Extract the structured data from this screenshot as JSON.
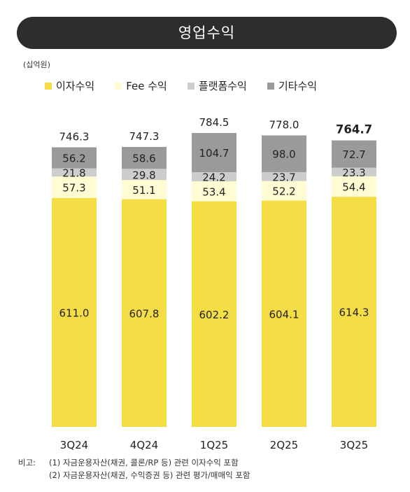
{
  "title": "영업수익",
  "unit": "(십억원)",
  "legend": [
    {
      "label": "이자수익",
      "color": "#f5dd46"
    },
    {
      "label": "Fee 수익",
      "color": "#fffbd2"
    },
    {
      "label": "플랫폼수익",
      "color": "#cdcdcd"
    },
    {
      "label": "기타수익",
      "color": "#9a9a9a"
    }
  ],
  "chart_data": {
    "type": "bar",
    "stacked": true,
    "categories": [
      "3Q24",
      "4Q24",
      "1Q25",
      "2Q25",
      "3Q25"
    ],
    "series": [
      {
        "name": "이자수익",
        "values": [
          611.0,
          607.8,
          602.2,
          604.1,
          614.3
        ],
        "labels": [
          "611.0",
          "607.8",
          "602.2",
          "604.1",
          "614.3"
        ]
      },
      {
        "name": "Fee 수익",
        "values": [
          57.3,
          51.1,
          53.4,
          52.2,
          54.4
        ],
        "labels": [
          "57.3",
          "51.1",
          "53.4",
          "52.2",
          "54.4"
        ]
      },
      {
        "name": "플랫폼수익",
        "values": [
          21.8,
          29.8,
          24.2,
          23.7,
          23.3
        ],
        "labels": [
          "21.8",
          "29.8",
          "24.2",
          "23.7",
          "23.3"
        ]
      },
      {
        "name": "기타수익",
        "values": [
          56.2,
          58.6,
          104.7,
          98.0,
          72.7
        ],
        "labels": [
          "56.2",
          "58.6",
          "104.7",
          "98.0",
          "72.7"
        ]
      }
    ],
    "totals": [
      746.3,
      747.3,
      784.5,
      778.0,
      764.7
    ],
    "total_labels": [
      "746.3",
      "747.3",
      "784.5",
      "778.0",
      "764.7"
    ],
    "highlight_total_index": 4,
    "colors": [
      "#f5dd46",
      "#fffbd2",
      "#cdcdcd",
      "#9a9a9a"
    ],
    "ylim": [
      0,
      784.5
    ],
    "grid": false,
    "legend_position": "top-left"
  },
  "notes": {
    "label": "비고:",
    "lines": [
      "(1) 자금운용자산(채권, 콜론/RP 등) 관련 이자수익 포함",
      "(2) 자금운용자산(채권, 수익증권 등) 관련 평가/매매익 포함"
    ]
  }
}
